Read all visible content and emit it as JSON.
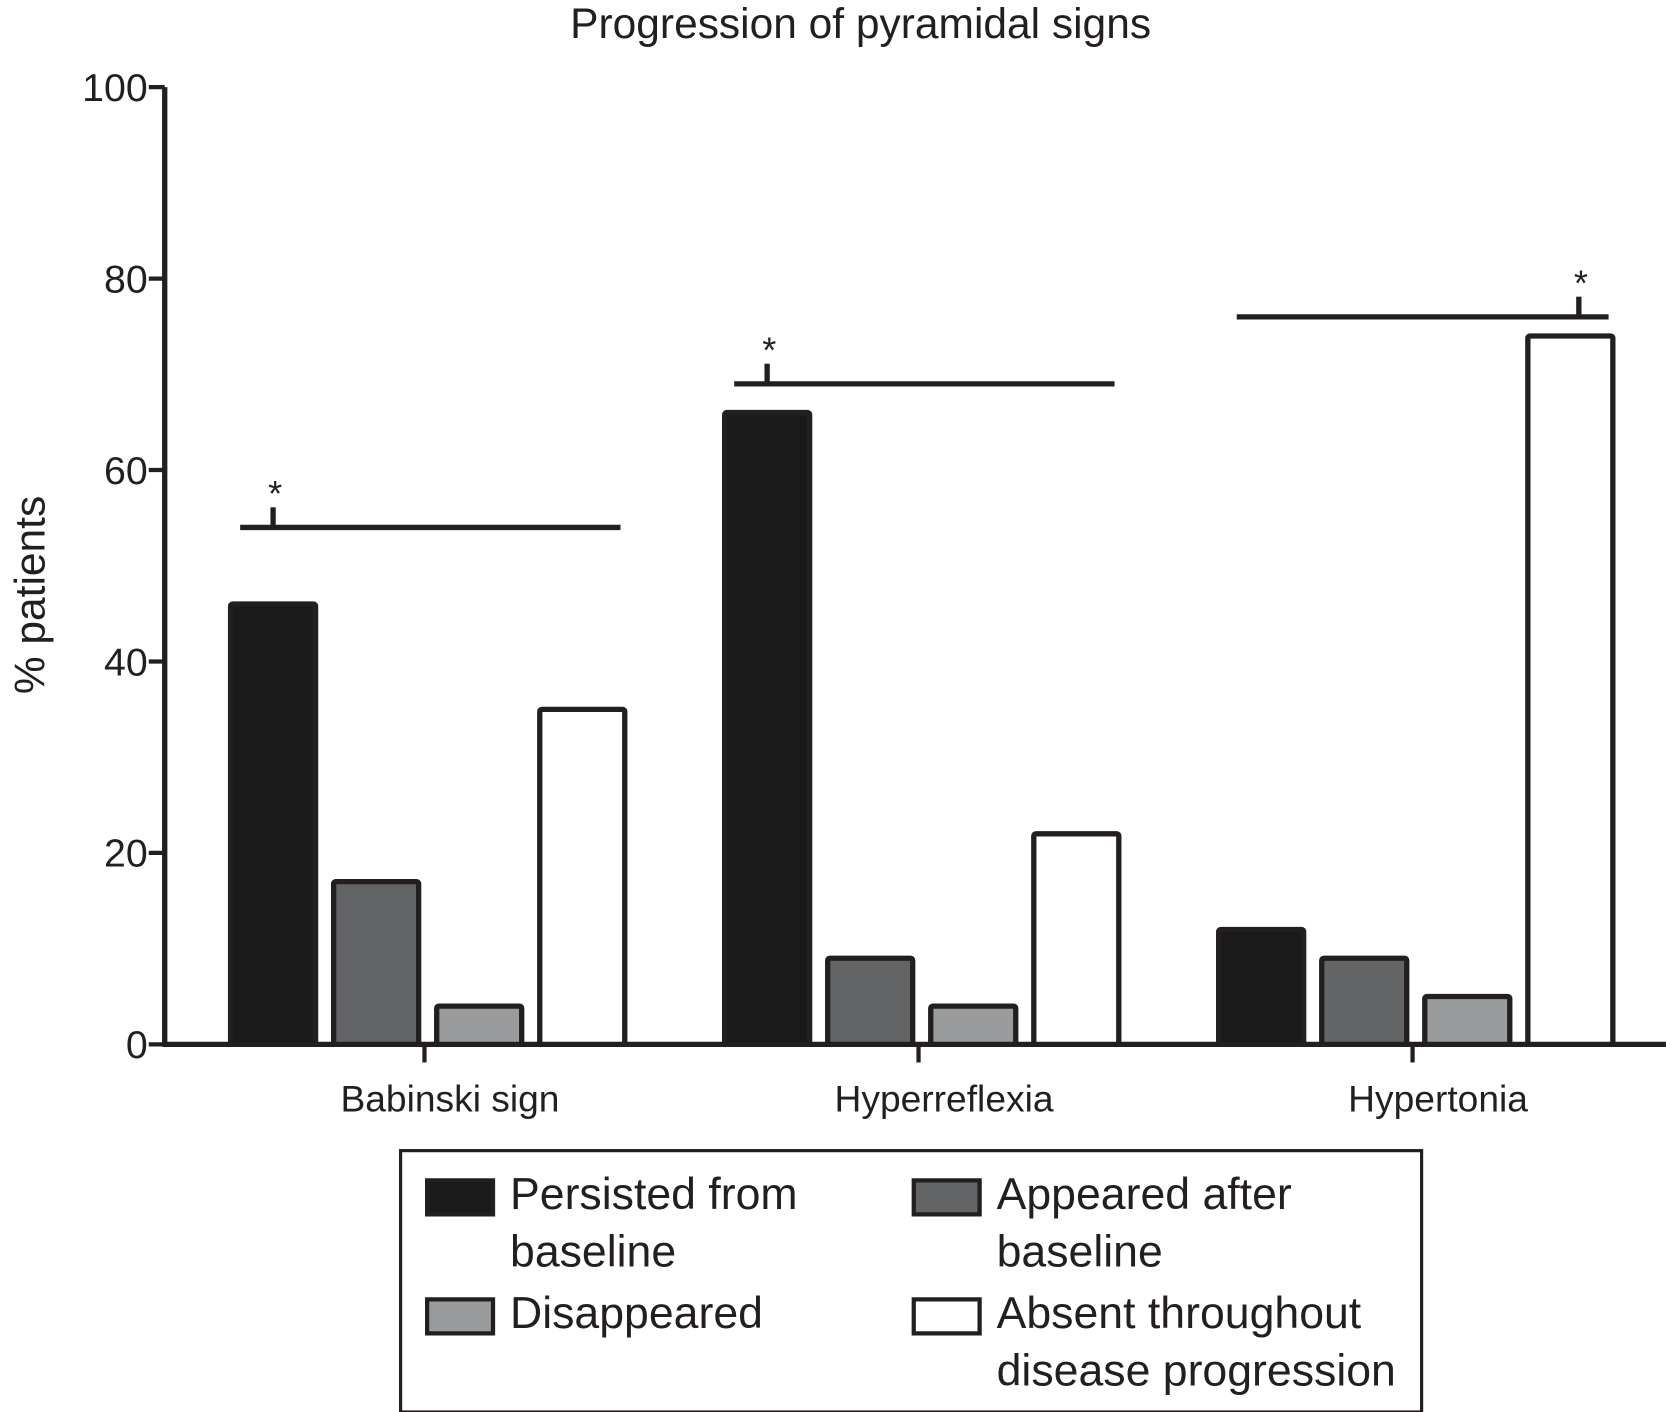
{
  "chart_data": {
    "type": "bar",
    "title": "Progression of pyramidal signs",
    "xlabel": "",
    "ylabel": "% patients",
    "ylim": [
      0,
      100
    ],
    "yticks": [
      "0",
      "20",
      "40",
      "60",
      "80",
      "100"
    ],
    "categories": [
      "Babinski sign",
      "Hyperreflexia",
      "Hypertonia"
    ],
    "series": [
      {
        "name": "Persisted from baseline",
        "name_lines": [
          "Persisted from",
          "baseline"
        ],
        "color": "#1a1a1a",
        "values": [
          46,
          66,
          12
        ]
      },
      {
        "name": "Appeared after baseline",
        "name_lines": [
          "Appeared after",
          "baseline"
        ],
        "color": "#636466",
        "values": [
          17,
          9,
          9
        ]
      },
      {
        "name": "Disappeared",
        "name_lines": [
          "Disappeared"
        ],
        "color": "#9a9b9d",
        "values": [
          4,
          4,
          5
        ]
      },
      {
        "name": "Absent throughout disease progression",
        "name_lines": [
          "Absent throughout",
          "disease progression"
        ],
        "color": "#ffffff",
        "values": [
          35,
          22,
          74
        ]
      }
    ],
    "significance": [
      {
        "category": "Babinski sign",
        "level": 54,
        "label": "*"
      },
      {
        "category": "Hyperreflexia",
        "level": 69,
        "label": "*"
      },
      {
        "category": "Hypertonia",
        "level": 76,
        "label": "*"
      }
    ],
    "grid": false,
    "legend_placement": "bottom"
  }
}
